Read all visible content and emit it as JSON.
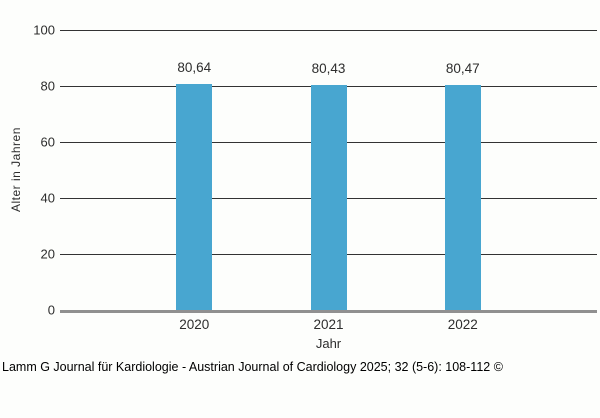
{
  "chart_data": {
    "type": "bar",
    "categories": [
      "2020",
      "2021",
      "2022"
    ],
    "values": [
      80.64,
      80.43,
      80.47
    ],
    "value_labels": [
      "80,64",
      "80,43",
      "80,47"
    ],
    "title": "",
    "xlabel": "Jahr",
    "ylabel": "Alter in Jahren",
    "ylim": [
      0,
      100
    ],
    "yticks": [
      0,
      20,
      40,
      60,
      80,
      100
    ],
    "grid": "horizontal",
    "legend": false,
    "bar_color": "#48a6d0"
  },
  "footer": {
    "citation": "Lamm G Journal für Kardiologie - Austrian Journal of Cardiology 2025; 32 (5-6): 108-112 ©"
  },
  "colors": {
    "bar": "#48a6d0",
    "gridline": "#333333",
    "axis_line": "#909090",
    "text": "#2d2d2d",
    "background": "#fdfefc"
  }
}
